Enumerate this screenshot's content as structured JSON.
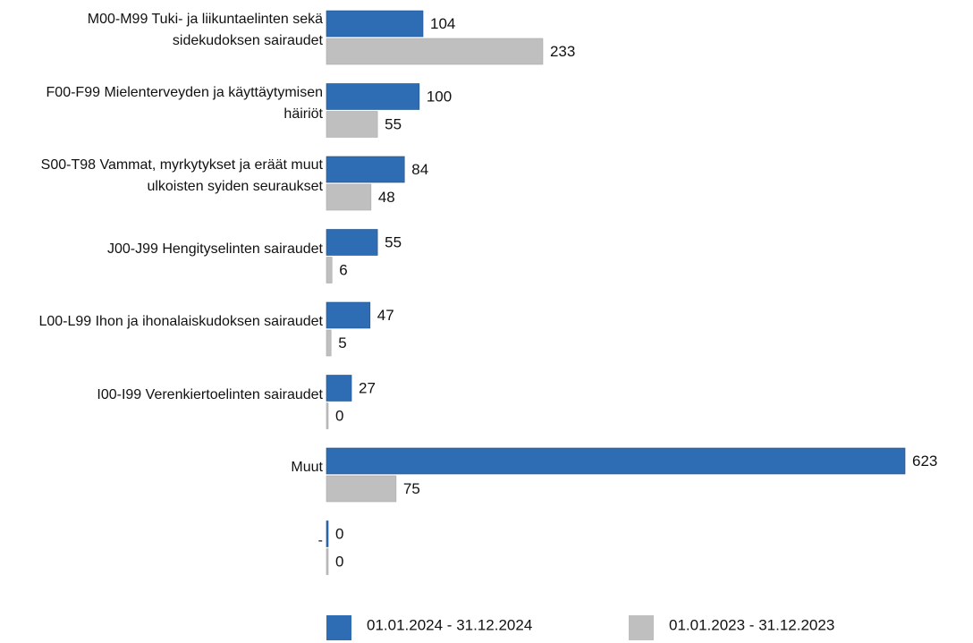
{
  "chart_data": {
    "type": "bar",
    "orientation": "horizontal",
    "categories": [
      "M00-M99 Tuki- ja liikuntaelinten sekä sidekudoksen sairaudet",
      "F00-F99 Mielenterveyden ja käyttäytymisen häiriöt",
      "S00-T98 Vammat, myrkytykset ja eräät muut ulkoisten syiden seuraukset",
      "J00-J99 Hengityselinten sairaudet",
      "L00-L99 Ihon ja ihonalaiskudoksen sairaudet",
      "I00-I99 Verenkiertoelinten sairaudet",
      "Muut",
      "-"
    ],
    "series": [
      {
        "name": "01.01.2024 - 31.12.2024",
        "color": "#2e6db4",
        "values": [
          104,
          100,
          84,
          55,
          47,
          27,
          623,
          0
        ]
      },
      {
        "name": "01.01.2023 - 31.12.2023",
        "color": "#bfbfbf",
        "values": [
          233,
          55,
          48,
          6,
          5,
          0,
          75,
          0
        ]
      }
    ],
    "legend": "bottom"
  }
}
